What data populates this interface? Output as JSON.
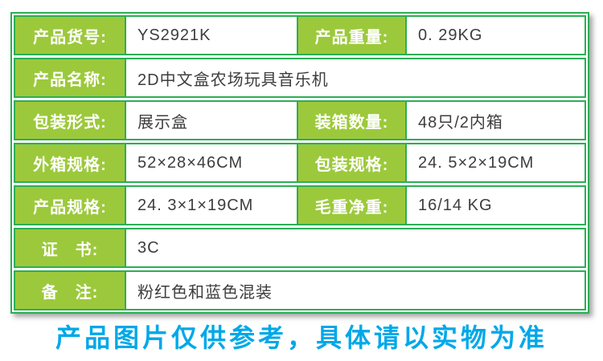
{
  "table": {
    "rows": [
      {
        "cells": [
          {
            "label": "产品货号:"
          },
          {
            "value": "YS2921K"
          },
          {
            "label": "产品重量:"
          },
          {
            "value": "0. 29KG"
          }
        ]
      },
      {
        "cells": [
          {
            "label": "产品名称:"
          },
          {
            "value": "2D中文盒农场玩具音乐机"
          }
        ]
      },
      {
        "cells": [
          {
            "label": "包装形式:"
          },
          {
            "value": "展示盒"
          },
          {
            "label": "装箱数量:"
          },
          {
            "value": "48只/2内箱"
          }
        ]
      },
      {
        "cells": [
          {
            "label": "外箱规格:"
          },
          {
            "value": "52×28×46CM"
          },
          {
            "label": "包装规格:"
          },
          {
            "value": "24. 5×2×19CM"
          }
        ]
      },
      {
        "cells": [
          {
            "label": "产品规格:"
          },
          {
            "value": "24. 3×1×19CM"
          },
          {
            "label": "毛重净重:"
          },
          {
            "value": "16/14 KG"
          }
        ]
      },
      {
        "cells": [
          {
            "label": "证　书:"
          },
          {
            "value": "3C"
          }
        ]
      },
      {
        "cells": [
          {
            "label": "备　注:"
          },
          {
            "value": "粉红色和蓝色混装"
          }
        ]
      }
    ]
  },
  "footer": {
    "notice": "产品图片仅供参考，具体请以实物为准"
  },
  "colors": {
    "label_background": "#9cc93b",
    "border_green": "#2bae55",
    "value_text": "#3d3d3d",
    "notice_blue": "#00a8e8"
  }
}
